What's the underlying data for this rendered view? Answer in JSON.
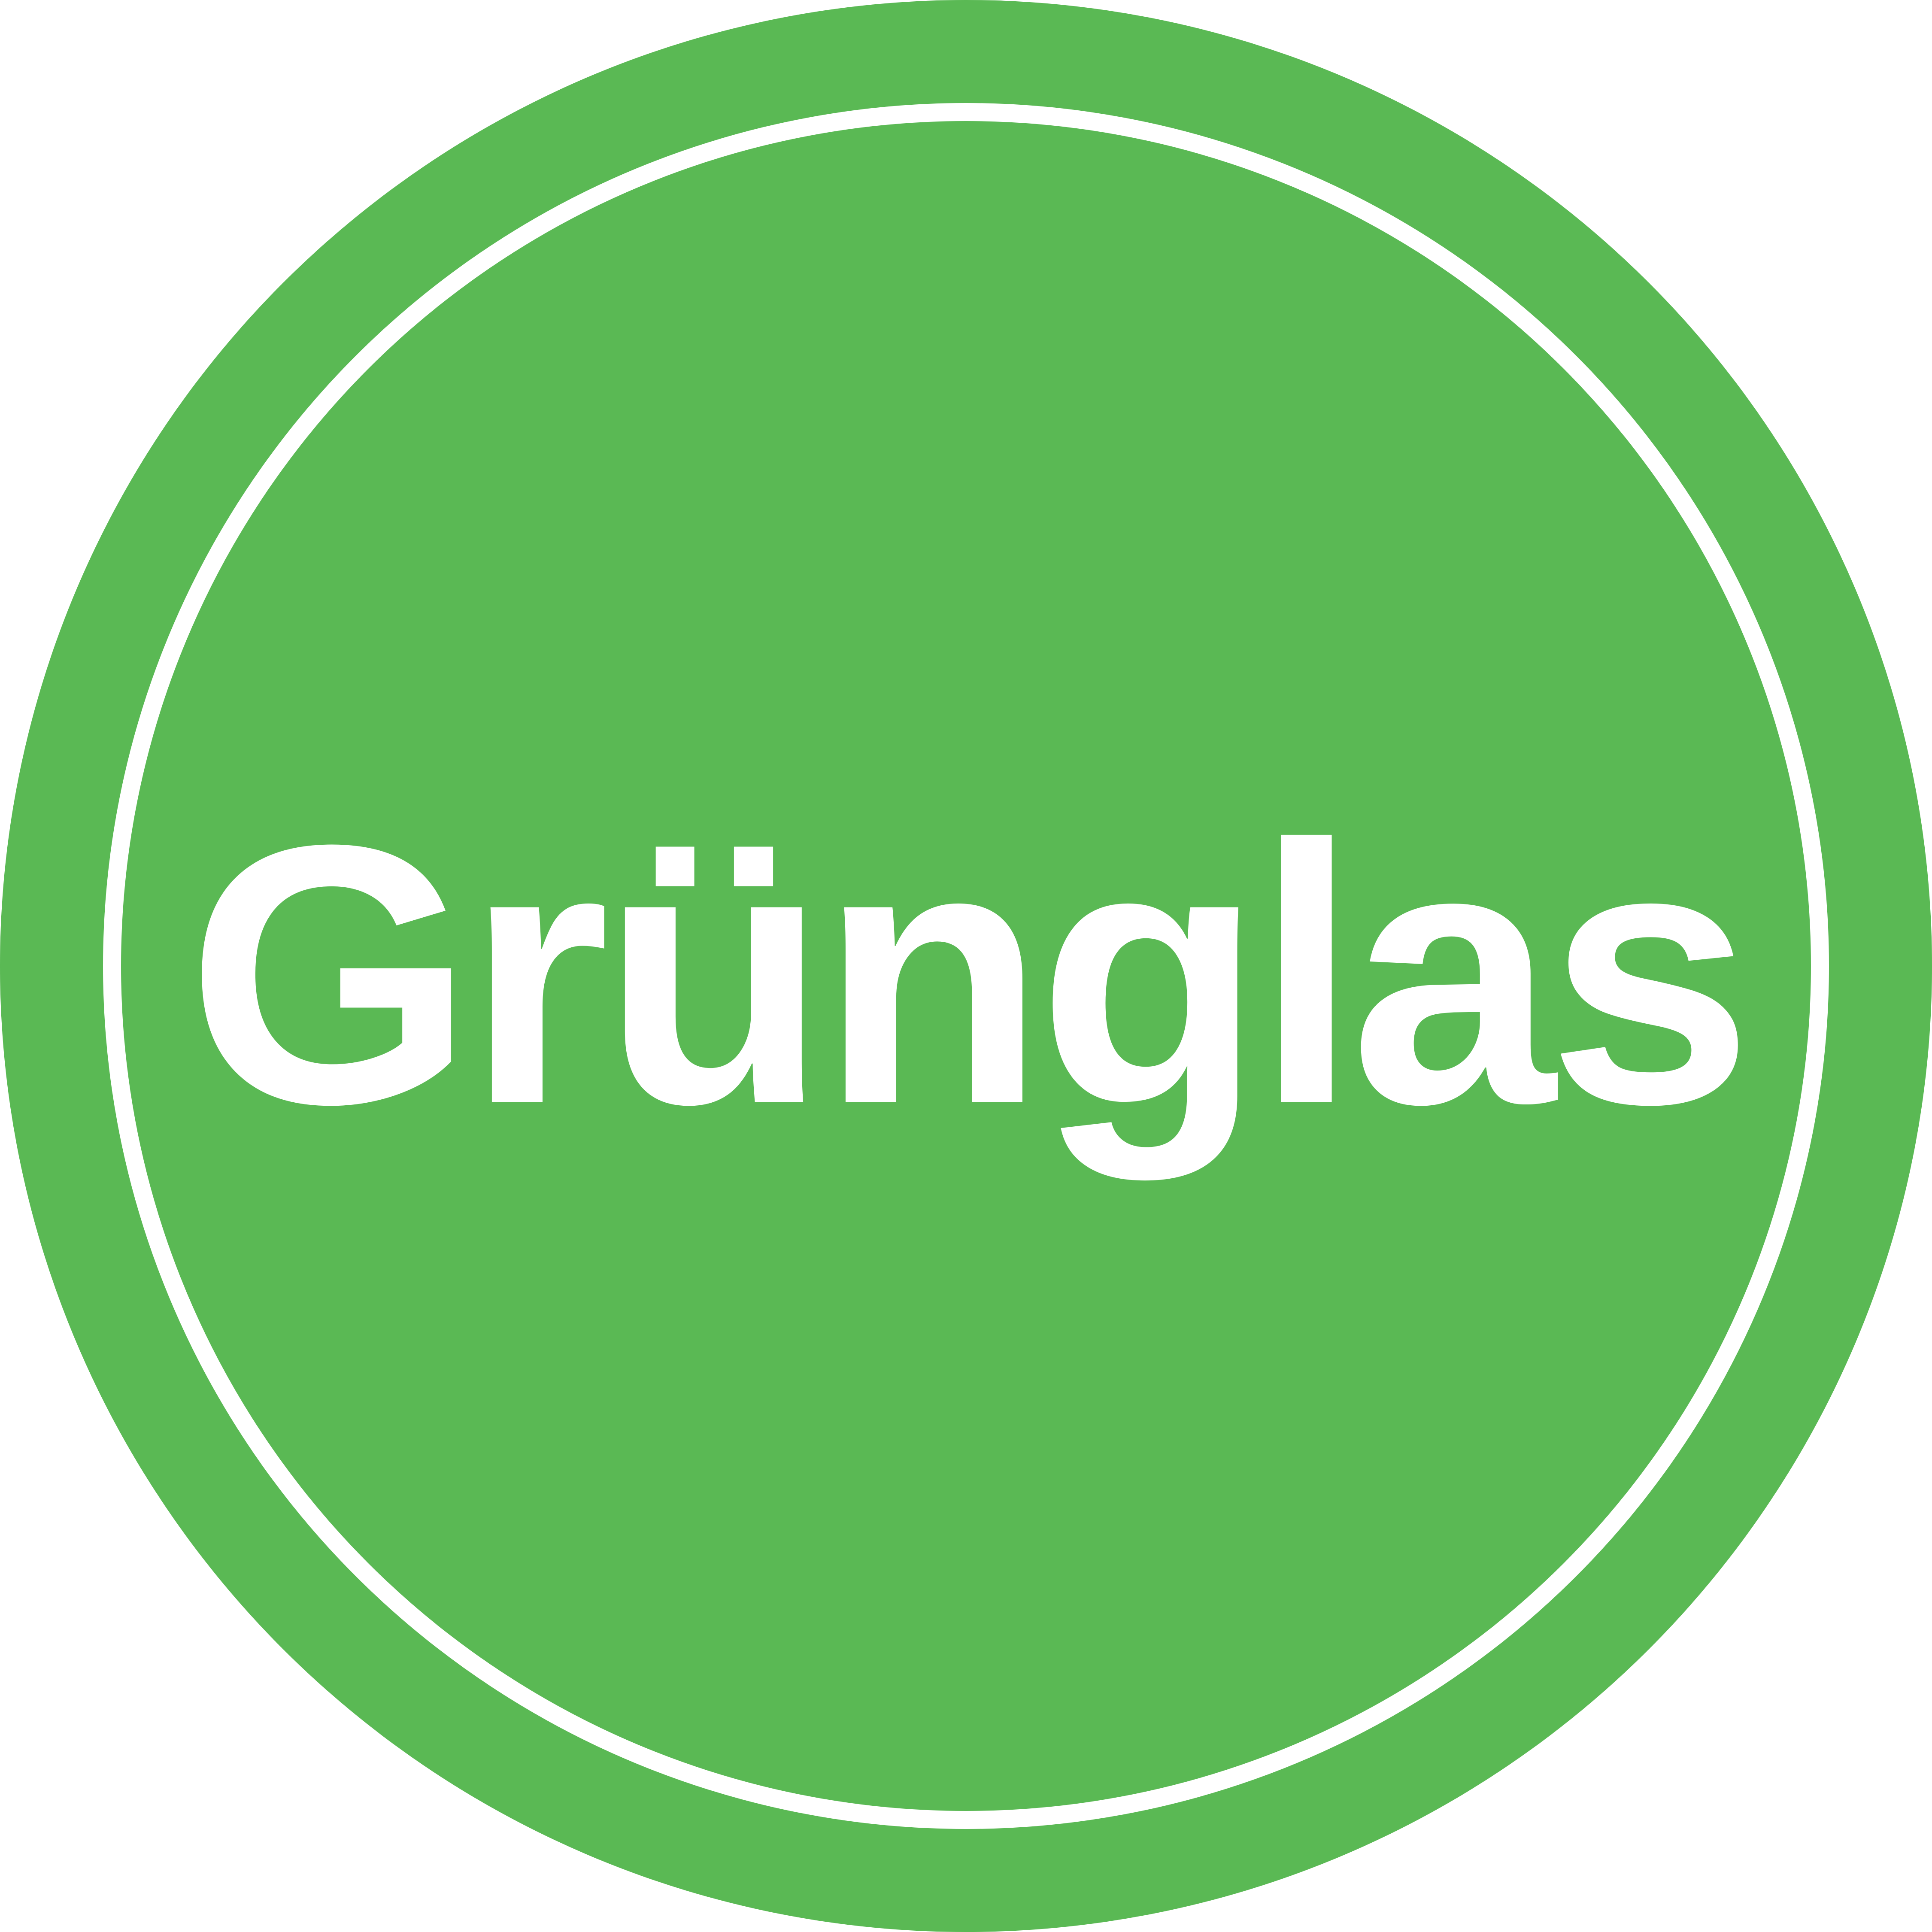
{
  "logo": {
    "text": "Grünglas",
    "colors": {
      "background": "#5AB954",
      "foreground": "#FFFFFF"
    }
  }
}
